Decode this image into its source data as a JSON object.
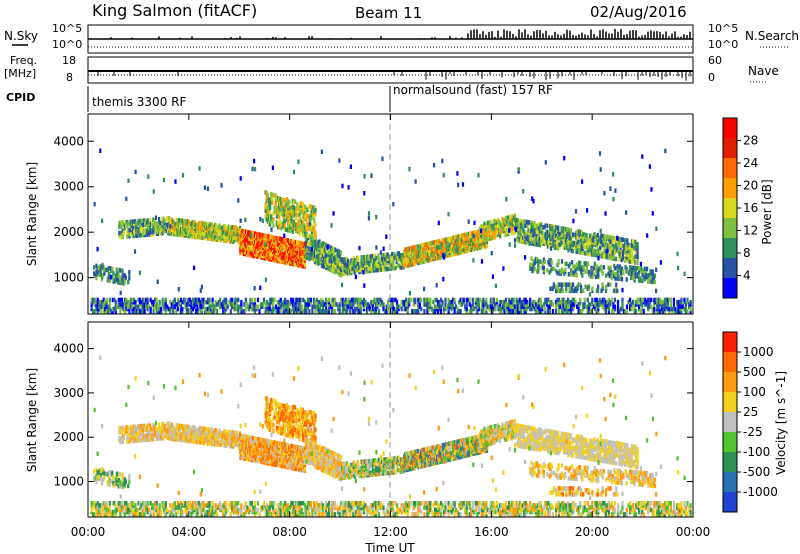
{
  "header": {
    "station": "King Salmon (fitACF)",
    "beam": "Beam 11",
    "date": "02/Aug/2016"
  },
  "top_panels": {
    "nsky_label": "N.Sky",
    "nsky_ticks": [
      "10^5",
      "10^0"
    ],
    "nsky_right_ticks": [
      "10^5",
      "10^0"
    ],
    "nsearch_label": "N.Search",
    "freq_label": "Freq.",
    "freq_unit": "[MHz]",
    "freq_ticks": [
      "18",
      "8"
    ],
    "nave_ticks": [
      "60",
      "0"
    ],
    "nave_label": "Nave",
    "cpid_label": "CPID",
    "cpid_segments": [
      {
        "label": "themis 3300 RF",
        "start_hour": 0
      },
      {
        "label": "normalsound (fast) 157 RF",
        "start_hour": 12
      }
    ]
  },
  "colors": {
    "power_scale": [
      "#0000ff",
      "#2851a8",
      "#2f8f5a",
      "#7fbf3f",
      "#d8d820",
      "#ff9c00",
      "#ff6a00",
      "#e02000",
      "#ff0000"
    ],
    "velocity_scale": [
      "#2040d0",
      "#2a70b0",
      "#2e8f55",
      "#54c230",
      "#c0c0c0",
      "#f3d020",
      "#ff9a10",
      "#ff6a00",
      "#ff2000"
    ]
  },
  "chart_data": [
    {
      "type": "heatmap",
      "name": "power-panel",
      "ylabel": "Slant Range [km]",
      "yticks": [
        1000,
        2000,
        3000,
        4000
      ],
      "ylim": [
        200,
        4600
      ],
      "xlim_hours": [
        0,
        24
      ],
      "colorbar_label": "Power [dB]",
      "colorbar_ticks": [
        4,
        8,
        12,
        16,
        20,
        24,
        28
      ],
      "colorbar_range": [
        0,
        32
      ]
    },
    {
      "type": "heatmap",
      "name": "velocity-panel",
      "ylabel": "Slant Range [km]",
      "yticks": [
        1000,
        2000,
        3000,
        4000
      ],
      "ylim": [
        200,
        4600
      ],
      "xlim_hours": [
        0,
        24
      ],
      "xlabel": "Time UT",
      "xticks": [
        "00:00",
        "04:00",
        "08:00",
        "12:00",
        "16:00",
        "20:00",
        "00:00"
      ],
      "colorbar_label": "Velocity [m s^-1]",
      "colorbar_ticks": [
        "1000",
        "500",
        "100",
        "25",
        "-25",
        "-100",
        "-500",
        "-1000"
      ]
    }
  ]
}
